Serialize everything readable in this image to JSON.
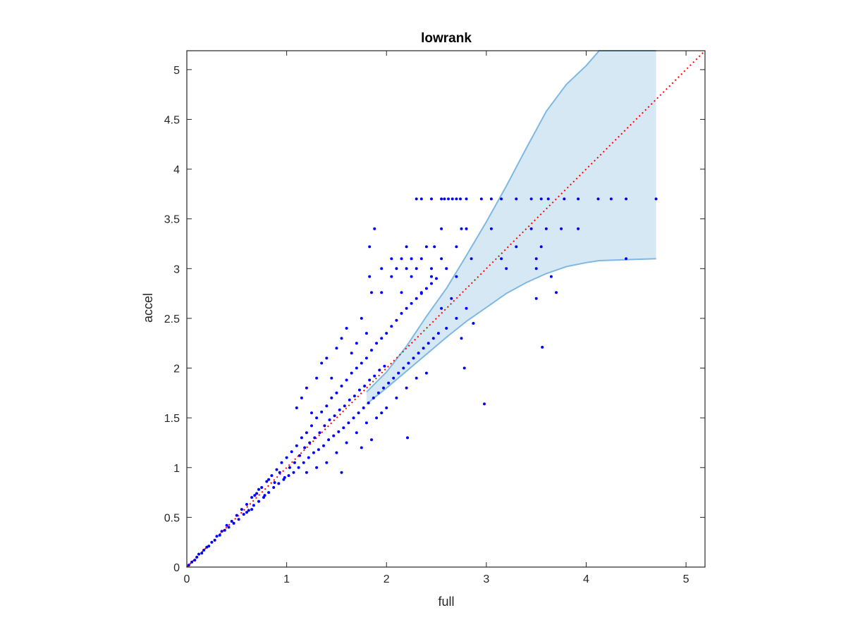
{
  "chart_data": {
    "type": "scatter",
    "title": "lowrank",
    "xlabel": "full",
    "ylabel": "accel",
    "xlim": [
      0,
      5.19
    ],
    "ylim": [
      0,
      5.19
    ],
    "xticks": [
      0,
      1,
      2,
      3,
      4,
      5
    ],
    "xtick_labels": [
      "0",
      "1",
      "2",
      "3",
      "4",
      "5"
    ],
    "yticks": [
      0,
      0.5,
      1,
      1.5,
      2,
      2.5,
      3,
      3.5,
      4,
      4.5,
      5
    ],
    "ytick_labels": [
      "0",
      "0.5",
      "1",
      "1.5",
      "2",
      "2.5",
      "3",
      "3.5",
      "4",
      "4.5",
      "5"
    ],
    "grid": false,
    "box": true,
    "colors": {
      "points": "#0000ff",
      "band_fill": "#d6e8f4",
      "band_edge": "#7fb8e0",
      "reference_line": "#ff0000",
      "axes": "#262626"
    },
    "reference_line": {
      "style": "dotted",
      "x": [
        0,
        5.19
      ],
      "y": [
        0,
        5.19
      ]
    },
    "band": {
      "x": [
        1.8,
        2.0,
        2.2,
        2.4,
        2.6,
        2.8,
        3.0,
        3.2,
        3.4,
        3.6,
        3.8,
        4.0,
        4.13,
        4.4,
        4.7
      ],
      "upper": [
        1.76,
        1.96,
        2.22,
        2.52,
        2.8,
        3.13,
        3.47,
        3.83,
        4.21,
        4.58,
        4.85,
        5.04,
        5.19,
        5.19,
        5.19
      ],
      "lower": [
        1.64,
        1.8,
        1.97,
        2.14,
        2.31,
        2.47,
        2.61,
        2.75,
        2.86,
        2.95,
        3.02,
        3.06,
        3.08,
        3.09,
        3.1
      ]
    },
    "series": [
      {
        "points": [
          [
            2.3,
            3.7
          ],
          [
            2.35,
            3.7
          ],
          [
            2.45,
            3.7
          ],
          [
            2.55,
            3.7
          ],
          [
            2.58,
            3.7
          ],
          [
            2.62,
            3.7
          ],
          [
            2.66,
            3.7
          ],
          [
            2.7,
            3.7
          ],
          [
            2.74,
            3.7
          ],
          [
            2.8,
            3.7
          ],
          [
            2.95,
            3.7
          ],
          [
            3.05,
            3.7
          ],
          [
            3.15,
            3.7
          ],
          [
            3.3,
            3.7
          ],
          [
            3.45,
            3.7
          ],
          [
            3.55,
            3.7
          ],
          [
            3.62,
            3.7
          ],
          [
            3.78,
            3.7
          ],
          [
            3.92,
            3.7
          ],
          [
            4.12,
            3.7
          ],
          [
            4.25,
            3.7
          ],
          [
            4.4,
            3.7
          ],
          [
            4.7,
            3.7
          ],
          [
            1.88,
            3.4
          ],
          [
            2.55,
            3.4
          ],
          [
            2.75,
            3.4
          ],
          [
            2.8,
            3.4
          ],
          [
            3.05,
            3.4
          ],
          [
            3.45,
            3.4
          ],
          [
            3.6,
            3.4
          ],
          [
            3.75,
            3.4
          ],
          [
            3.92,
            3.4
          ],
          [
            1.83,
            3.22
          ],
          [
            2.2,
            3.22
          ],
          [
            2.4,
            3.22
          ],
          [
            2.48,
            3.22
          ],
          [
            2.7,
            3.22
          ],
          [
            3.3,
            3.22
          ],
          [
            3.55,
            3.22
          ],
          [
            2.05,
            3.1
          ],
          [
            2.15,
            3.1
          ],
          [
            2.25,
            3.1
          ],
          [
            2.35,
            3.1
          ],
          [
            2.55,
            3.1
          ],
          [
            2.85,
            3.1
          ],
          [
            3.15,
            3.1
          ],
          [
            3.5,
            3.1
          ],
          [
            4.4,
            3.1
          ],
          [
            1.95,
            3.0
          ],
          [
            2.1,
            3.0
          ],
          [
            2.2,
            3.0
          ],
          [
            2.3,
            3.0
          ],
          [
            2.45,
            3.0
          ],
          [
            2.6,
            3.0
          ],
          [
            3.2,
            3.0
          ],
          [
            3.5,
            3.0
          ],
          [
            1.83,
            2.92
          ],
          [
            2.05,
            2.92
          ],
          [
            2.25,
            2.92
          ],
          [
            2.45,
            2.92
          ],
          [
            2.7,
            2.92
          ],
          [
            3.65,
            2.92
          ],
          [
            1.85,
            2.76
          ],
          [
            1.95,
            2.76
          ],
          [
            2.15,
            2.76
          ],
          [
            2.35,
            2.76
          ],
          [
            3.7,
            2.76
          ],
          [
            3.5,
            2.7
          ],
          [
            3.56,
            2.21
          ],
          [
            2.98,
            1.64
          ],
          [
            2.21,
            1.3
          ],
          [
            2.78,
            2.0
          ],
          [
            2.87,
            2.45
          ],
          [
            2.75,
            2.3
          ],
          [
            0.02,
            0.02
          ],
          [
            0.05,
            0.05
          ],
          [
            0.08,
            0.07
          ],
          [
            0.1,
            0.1
          ],
          [
            0.12,
            0.13
          ],
          [
            0.15,
            0.14
          ],
          [
            0.17,
            0.17
          ],
          [
            0.2,
            0.2
          ],
          [
            0.22,
            0.21
          ],
          [
            0.25,
            0.25
          ],
          [
            0.28,
            0.27
          ],
          [
            0.3,
            0.31
          ],
          [
            0.33,
            0.32
          ],
          [
            0.35,
            0.36
          ],
          [
            0.38,
            0.37
          ],
          [
            0.4,
            0.42
          ],
          [
            0.42,
            0.4
          ],
          [
            0.45,
            0.46
          ],
          [
            0.47,
            0.44
          ],
          [
            0.5,
            0.52
          ],
          [
            0.52,
            0.48
          ],
          [
            0.55,
            0.58
          ],
          [
            0.57,
            0.53
          ],
          [
            0.6,
            0.63
          ],
          [
            0.62,
            0.57
          ],
          [
            0.65,
            0.7
          ],
          [
            0.67,
            0.62
          ],
          [
            0.7,
            0.74
          ],
          [
            0.72,
            0.66
          ],
          [
            0.75,
            0.8
          ],
          [
            0.77,
            0.7
          ],
          [
            0.8,
            0.86
          ],
          [
            0.82,
            0.75
          ],
          [
            0.85,
            0.92
          ],
          [
            0.87,
            0.8
          ],
          [
            0.9,
            0.98
          ],
          [
            0.92,
            0.84
          ],
          [
            0.95,
            1.05
          ],
          [
            0.97,
            0.88
          ],
          [
            1.0,
            1.1
          ],
          [
            1.02,
            0.92
          ],
          [
            1.05,
            1.16
          ],
          [
            1.07,
            0.95
          ],
          [
            1.1,
            1.22
          ],
          [
            1.12,
            1.0
          ],
          [
            1.15,
            1.3
          ],
          [
            1.17,
            1.05
          ],
          [
            1.2,
            1.35
          ],
          [
            1.22,
            1.1
          ],
          [
            1.25,
            1.42
          ],
          [
            1.27,
            1.15
          ],
          [
            1.3,
            1.5
          ],
          [
            1.32,
            1.18
          ],
          [
            1.35,
            1.56
          ],
          [
            1.37,
            1.22
          ],
          [
            1.4,
            1.62
          ],
          [
            1.42,
            1.28
          ],
          [
            1.45,
            1.7
          ],
          [
            1.47,
            1.32
          ],
          [
            1.5,
            1.75
          ],
          [
            1.52,
            1.36
          ],
          [
            1.55,
            1.82
          ],
          [
            1.57,
            1.4
          ],
          [
            1.6,
            1.88
          ],
          [
            1.62,
            1.45
          ],
          [
            1.65,
            1.95
          ],
          [
            1.67,
            1.5
          ],
          [
            1.7,
            2.0
          ],
          [
            1.72,
            1.55
          ],
          [
            1.75,
            2.05
          ],
          [
            1.77,
            1.6
          ],
          [
            1.8,
            2.1
          ],
          [
            1.82,
            1.65
          ],
          [
            1.85,
            2.18
          ],
          [
            1.87,
            1.7
          ],
          [
            1.9,
            2.25
          ],
          [
            1.92,
            1.75
          ],
          [
            1.95,
            2.3
          ],
          [
            1.97,
            1.8
          ],
          [
            2.0,
            2.35
          ],
          [
            2.02,
            1.85
          ],
          [
            2.05,
            2.42
          ],
          [
            2.07,
            1.9
          ],
          [
            2.1,
            2.48
          ],
          [
            2.12,
            1.95
          ],
          [
            2.15,
            2.55
          ],
          [
            2.17,
            2.0
          ],
          [
            2.2,
            2.6
          ],
          [
            2.22,
            2.05
          ],
          [
            2.25,
            2.65
          ],
          [
            2.27,
            2.1
          ],
          [
            2.3,
            2.7
          ],
          [
            2.32,
            2.15
          ],
          [
            2.35,
            2.75
          ],
          [
            2.37,
            2.2
          ],
          [
            2.4,
            2.8
          ],
          [
            2.42,
            2.25
          ],
          [
            2.45,
            2.85
          ],
          [
            2.47,
            2.3
          ],
          [
            2.5,
            2.9
          ],
          [
            2.52,
            2.35
          ],
          [
            2.55,
            2.6
          ],
          [
            2.6,
            2.4
          ],
          [
            2.65,
            2.7
          ],
          [
            2.7,
            2.5
          ],
          [
            2.8,
            2.6
          ],
          [
            0.6,
            0.55
          ],
          [
            0.65,
            0.58
          ],
          [
            0.68,
            0.72
          ],
          [
            0.72,
            0.78
          ],
          [
            0.78,
            0.72
          ],
          [
            0.82,
            0.88
          ],
          [
            0.88,
            0.85
          ],
          [
            0.93,
            0.95
          ],
          [
            0.98,
            0.9
          ],
          [
            1.03,
            1.0
          ],
          [
            1.08,
            1.05
          ],
          [
            1.13,
            1.12
          ],
          [
            1.18,
            1.2
          ],
          [
            1.23,
            1.25
          ],
          [
            1.28,
            1.3
          ],
          [
            1.33,
            1.35
          ],
          [
            1.38,
            1.42
          ],
          [
            1.43,
            1.48
          ],
          [
            1.48,
            1.52
          ],
          [
            1.53,
            1.58
          ],
          [
            1.58,
            1.62
          ],
          [
            1.63,
            1.68
          ],
          [
            1.68,
            1.72
          ],
          [
            1.73,
            1.78
          ],
          [
            1.78,
            1.82
          ],
          [
            1.83,
            1.88
          ],
          [
            1.88,
            1.92
          ],
          [
            1.93,
            1.98
          ],
          [
            1.98,
            2.02
          ],
          [
            1.1,
            1.6
          ],
          [
            1.15,
            1.7
          ],
          [
            1.2,
            1.8
          ],
          [
            1.25,
            1.55
          ],
          [
            1.3,
            1.9
          ],
          [
            1.35,
            2.05
          ],
          [
            1.4,
            2.1
          ],
          [
            1.45,
            1.9
          ],
          [
            1.5,
            2.2
          ],
          [
            1.55,
            2.3
          ],
          [
            1.6,
            2.4
          ],
          [
            1.65,
            2.15
          ],
          [
            1.7,
            2.25
          ],
          [
            1.75,
            2.5
          ],
          [
            1.8,
            2.35
          ],
          [
            1.2,
            0.95
          ],
          [
            1.3,
            1.0
          ],
          [
            1.4,
            1.05
          ],
          [
            1.5,
            1.15
          ],
          [
            1.55,
            0.95
          ],
          [
            1.6,
            1.25
          ],
          [
            1.7,
            1.35
          ],
          [
            1.75,
            1.2
          ],
          [
            1.8,
            1.45
          ],
          [
            1.85,
            1.28
          ],
          [
            1.9,
            1.5
          ],
          [
            1.95,
            1.55
          ],
          [
            2.0,
            1.6
          ],
          [
            2.1,
            1.7
          ],
          [
            2.2,
            1.8
          ],
          [
            2.3,
            1.9
          ],
          [
            2.4,
            1.95
          ]
        ]
      }
    ]
  }
}
